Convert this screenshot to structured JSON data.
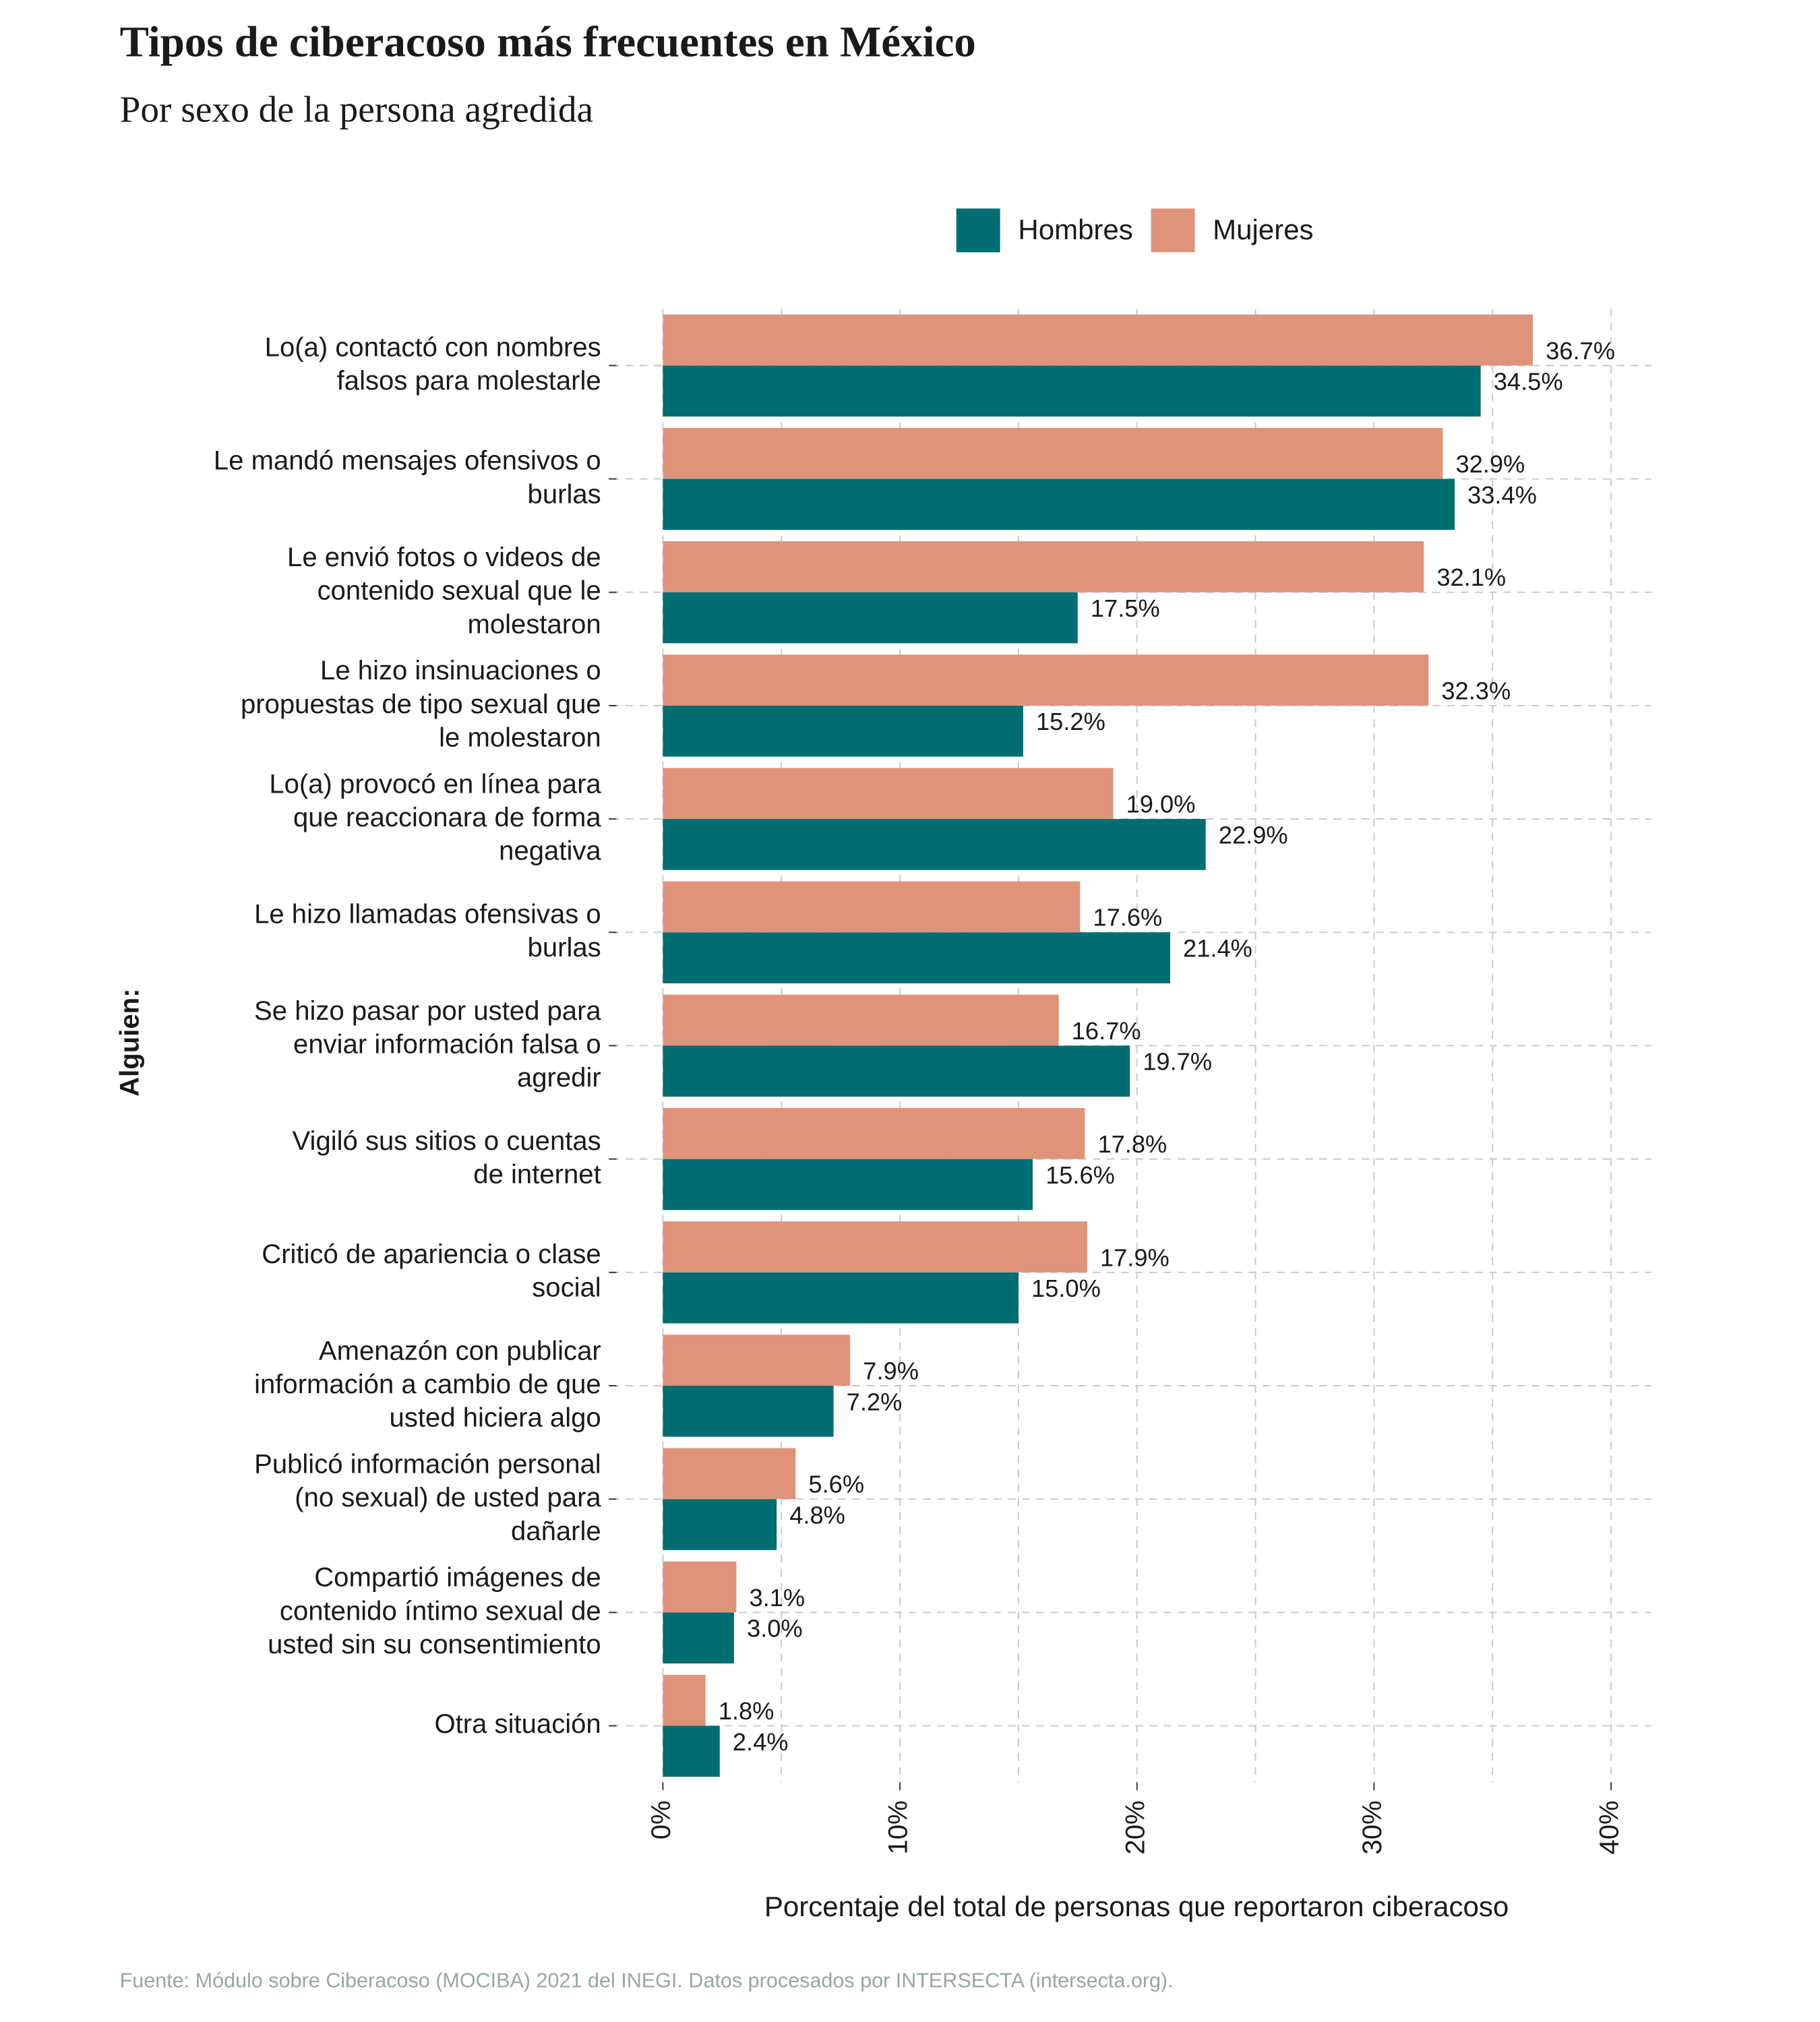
{
  "chart_data": {
    "type": "bar",
    "orientation": "horizontal",
    "title": "Tipos de ciberacoso más frecuentes en México",
    "subtitle": "Por sexo de la persona agredida",
    "y_axis_label": "Alguien:",
    "x_axis_label": "Porcentaje del total de personas que reportaron ciberacoso",
    "source": "Fuente: Módulo sobre Ciberacoso (MOCIBA) 2021 del INEGI. Datos procesados por INTERSECTA (intersecta.org).",
    "categories": [
      "Lo(a) contactó con nombres\nfalsos para molestarle",
      "Le mandó mensajes ofensivos o\nburlas",
      "Le envió fotos o videos de\ncontenido sexual que le\nmolestaron",
      "Le hizo insinuaciones o\npropuestas de tipo sexual que\nle molestaron",
      "Lo(a) provocó en línea para\nque reaccionara de forma\nnegativa",
      "Le hizo llamadas ofensivas o\nburlas",
      "Se hizo pasar por usted para\nenviar información falsa o\nagredir",
      "Vigiló sus sitios o cuentas\nde internet",
      "Criticó de apariencia o clase\nsocial",
      "Amenazón con publicar\ninformación a cambio de que\nusted hiciera algo",
      "Publicó información personal\n(no sexual) de usted para\ndañarle",
      "Compartió imágenes de\ncontenido íntimo sexual de\nusted sin su consentimiento",
      "Otra situación"
    ],
    "series": [
      {
        "name": "Hombres",
        "color": "#006d73",
        "values": [
          34.5,
          33.4,
          17.5,
          15.2,
          22.9,
          21.4,
          19.7,
          15.6,
          15.0,
          7.2,
          4.8,
          3.0,
          2.4
        ],
        "value_labels": [
          "34.5%",
          "33.4%",
          "17.5%",
          "15.2%",
          "22.9%",
          "21.4%",
          "19.7%",
          "15.6%",
          "15.0%",
          "7.2%",
          "4.8%",
          "3.0%",
          "2.4%"
        ]
      },
      {
        "name": "Mujeres",
        "color": "#e0937a",
        "values": [
          36.7,
          32.9,
          32.1,
          32.3,
          19.0,
          17.6,
          16.7,
          17.8,
          17.9,
          7.9,
          5.6,
          3.1,
          1.8
        ],
        "value_labels": [
          "36.7%",
          "32.9%",
          "32.1%",
          "32.3%",
          "19.0%",
          "17.6%",
          "16.7%",
          "17.8%",
          "17.9%",
          "7.9%",
          "5.6%",
          "3.1%",
          "1.8%"
        ]
      }
    ],
    "xlim": [
      0,
      41.7
    ],
    "xticks": [
      {
        "value": 0,
        "label": "0%"
      },
      {
        "value": 10,
        "label": "10%"
      },
      {
        "value": 20,
        "label": "20%"
      },
      {
        "value": 30,
        "label": "30%"
      },
      {
        "value": 40,
        "label": "40%"
      }
    ],
    "xminor": [
      5,
      15,
      25,
      35
    ],
    "grid": true,
    "legend": "top"
  }
}
